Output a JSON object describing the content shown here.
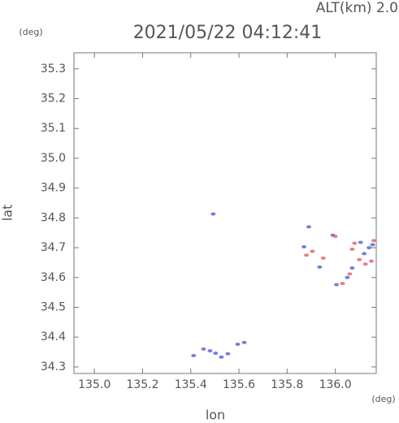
{
  "chart_data": {
    "type": "scatter",
    "altitude_label": "ALT(km) 2.0",
    "title": "2021/05/22 04:12:41",
    "y_unit": "(deg)",
    "x_unit": "(deg)",
    "xlabel": "lon",
    "ylabel": "lat",
    "xlim": [
      134.915,
      136.17
    ],
    "ylim": [
      34.278,
      35.354
    ],
    "xticks": [
      {
        "value": 135,
        "label": "135.0"
      },
      135.2,
      135.4,
      135.6,
      135.8,
      {
        "value": 136,
        "label": "136.0"
      }
    ],
    "yticks": [
      34.3,
      34.4,
      34.5,
      34.6,
      34.7,
      34.8,
      34.9,
      {
        "value": 35,
        "label": "35.0"
      },
      35.1,
      35.2,
      35.3
    ],
    "series": [
      {
        "color": "#5a6ad8",
        "x": [
          135.493,
          135.412,
          135.453,
          135.48,
          135.503,
          135.527,
          135.554,
          135.595,
          135.622,
          135.87,
          135.89,
          135.935,
          135.99,
          136.005,
          136.05,
          136.07,
          136.105,
          136.12,
          136.14,
          136.155
        ],
        "y": [
          34.813,
          34.338,
          34.36,
          34.354,
          34.346,
          34.333,
          34.344,
          34.376,
          34.382,
          34.703,
          34.77,
          34.635,
          34.742,
          34.576,
          34.6,
          34.632,
          34.718,
          34.68,
          34.7,
          34.71
        ]
      },
      {
        "color": "#e4686e",
        "x": [
          135.88,
          135.905,
          135.95,
          136.0,
          136.03,
          136.06,
          136.08,
          136.1,
          136.125,
          136.15,
          136.16,
          136.07
        ],
        "y": [
          34.675,
          34.688,
          34.665,
          34.738,
          34.58,
          34.612,
          34.715,
          34.66,
          34.645,
          34.655,
          34.724,
          34.695
        ]
      }
    ]
  }
}
